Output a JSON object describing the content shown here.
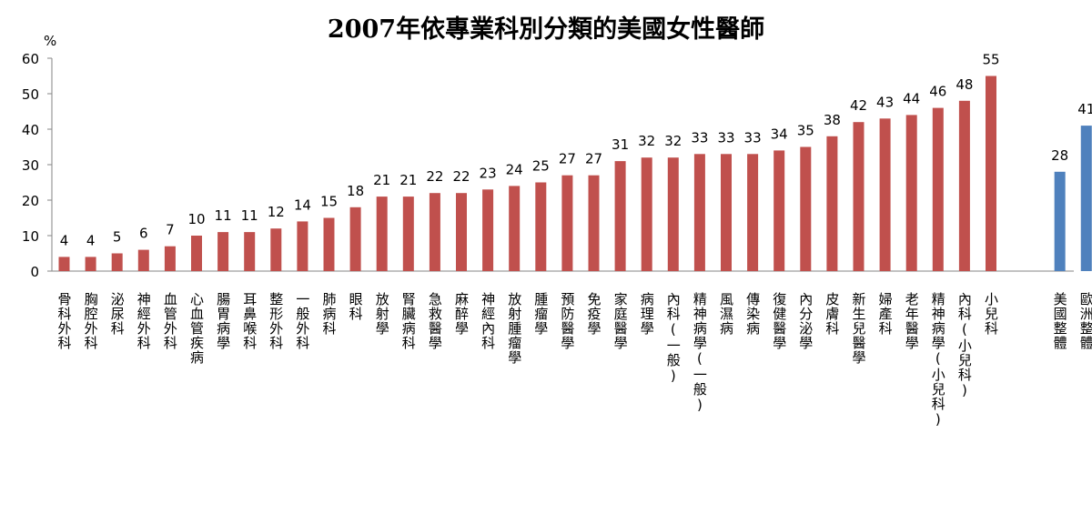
{
  "chart_data": {
    "type": "bar",
    "title": "2007年依專業科別分類的美國女性醫師",
    "unit": "%",
    "ylim": [
      0,
      60
    ],
    "yticks": [
      0,
      10,
      20,
      30,
      40,
      50,
      60
    ],
    "grid": false,
    "series": [
      {
        "color": "#c0504d",
        "categories": [
          "骨科外科",
          "胸腔外科",
          "泌尿科",
          "神經外科",
          "血管外科",
          "心血管疾病",
          "腸胃病學",
          "耳鼻喉科",
          "整形外科",
          "一般外科",
          "肺病科",
          "眼科",
          "放射學",
          "腎臟病科",
          "急救醫學",
          "麻醉學",
          "神經內科",
          "放射腫瘤學",
          "腫瘤學",
          "預防醫學",
          "免疫學",
          "家庭醫學",
          "病理學",
          "內科(一般)",
          "精神病學(一般)",
          "風濕病",
          "傳染病",
          "復健醫學",
          "內分泌學",
          "皮膚科",
          "新生兒醫學",
          "婦產科",
          "老年醫學",
          "精神病學(小兒科)",
          "內科(小兒科)",
          "小兒科"
        ],
        "values": [
          4,
          4,
          5,
          6,
          7,
          10,
          11,
          11,
          12,
          14,
          15,
          18,
          21,
          21,
          22,
          22,
          23,
          24,
          25,
          27,
          27,
          31,
          32,
          32,
          33,
          33,
          33,
          34,
          35,
          38,
          42,
          43,
          44,
          46,
          48,
          55
        ]
      },
      {
        "color": "#4f81bd",
        "categories": [
          "美國整體",
          "歐洲整體"
        ],
        "values": [
          28,
          41
        ]
      }
    ]
  }
}
